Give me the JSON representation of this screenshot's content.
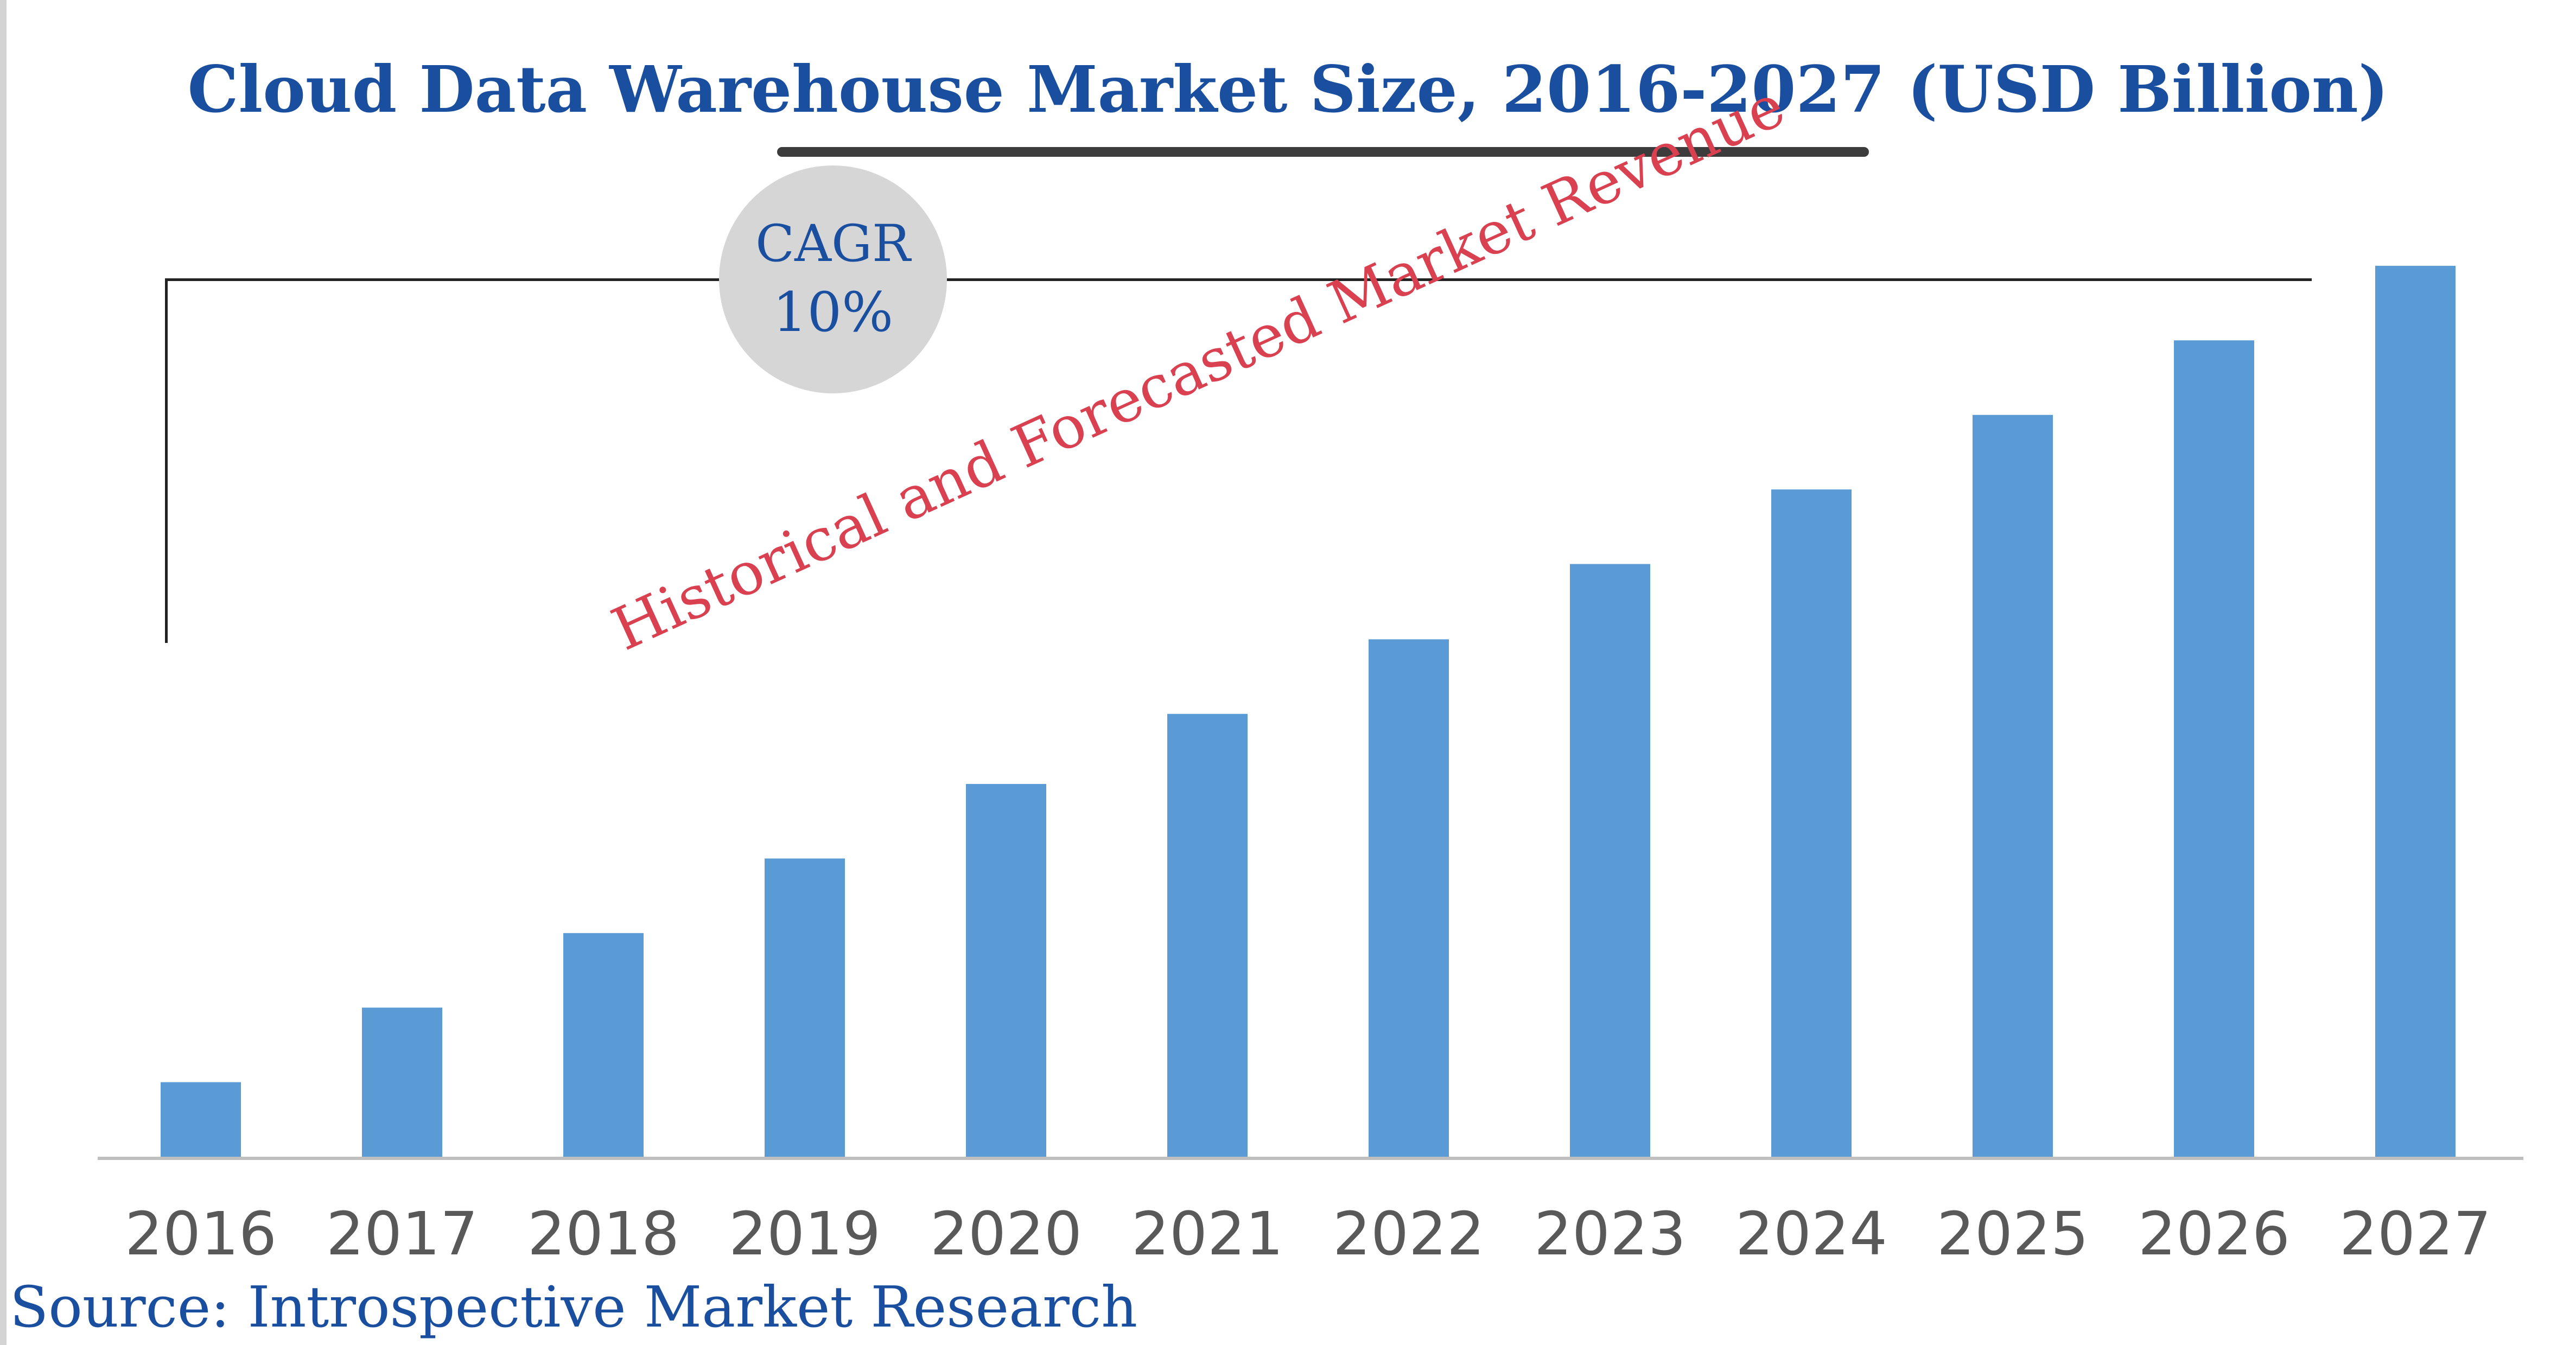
{
  "chart_data": {
    "type": "bar",
    "title": "Cloud Data Warehouse Market Size, 2016-2027 (USD Billion)",
    "categories": [
      "2016",
      "2017",
      "2018",
      "2019",
      "2020",
      "2021",
      "2022",
      "2023",
      "2024",
      "2025",
      "2026",
      "2027"
    ],
    "values": [
      1.0,
      2.0,
      3.0,
      4.0,
      5.0,
      5.94,
      6.94,
      7.95,
      8.95,
      9.95,
      10.95,
      11.95
    ],
    "xlabel": "",
    "ylabel": "",
    "ylim": [
      0,
      12
    ],
    "grid": false,
    "legend": "none",
    "colors": {
      "bar": "#5b9bd5",
      "axis": "#bfbfbf",
      "tick_text": "#595959"
    },
    "annotations": {
      "cagr_label": "CAGR",
      "cagr_value": "10%",
      "trend_text": "Historical and Forecasted Market Revenue"
    }
  },
  "source": "Source: Introspective Market Research",
  "colors": {
    "title": "#1a4fa0",
    "annotation": "#d94050",
    "cagr_circle": "#d6d6d6"
  }
}
